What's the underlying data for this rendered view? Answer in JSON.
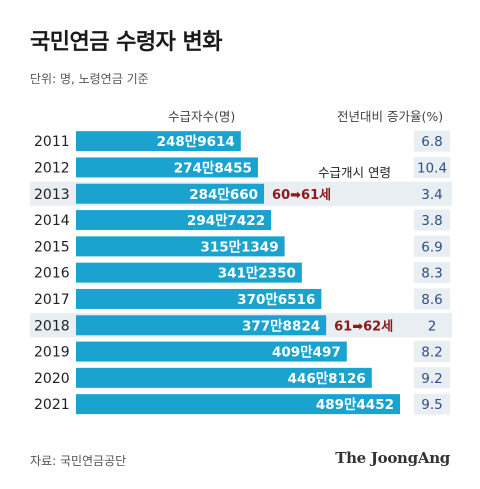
{
  "title": "국민연금 수령자 변화",
  "unit_note": "단위: 명, 노령연금 기준",
  "header_left": "수급자수(명)",
  "header_right": "전년대비 증가율(%)",
  "source": "자료: 국민연금공단",
  "brand": "The JoongAng",
  "colors": {
    "bar": "#1aa3cf",
    "row_shade": "#e9eef2",
    "pct_box": "#e9eef2",
    "pct_text": "#2f4f86",
    "annotation_value": "#8b1a1a"
  },
  "annotations": [
    {
      "row_year": "2013",
      "label": "수급개시 연령",
      "from": "60",
      "arrow": "➡",
      "to": "61세"
    },
    {
      "row_year": "2018",
      "label": "",
      "from": "61",
      "arrow": "➡",
      "to": "62세"
    }
  ],
  "chart_data": {
    "type": "bar",
    "orientation": "horizontal",
    "categories": [
      "2011",
      "2012",
      "2013",
      "2014",
      "2015",
      "2016",
      "2017",
      "2018",
      "2019",
      "2020",
      "2021"
    ],
    "values": [
      2489614,
      2748455,
      2840660,
      2947422,
      3151349,
      3412350,
      3706516,
      3778824,
      4090497,
      4468126,
      4894452
    ],
    "value_labels": [
      "248만9614",
      "274만8455",
      "284만660",
      "294만7422",
      "315만1349",
      "341만2350",
      "370만6516",
      "377만8824",
      "409만497",
      "446만8126",
      "489만4452"
    ],
    "growth_rate_labels": [
      "6.8",
      "10.4",
      "3.4",
      "3.8",
      "6.9",
      "8.3",
      "8.6",
      "2",
      "8.2",
      "9.2",
      "9.5"
    ],
    "growth_rate": [
      6.8,
      10.4,
      3.4,
      3.8,
      6.9,
      8.3,
      8.6,
      2,
      8.2,
      9.2,
      9.5
    ],
    "shaded_rows": [
      "2013",
      "2018"
    ],
    "xlim": [
      0,
      4894452
    ]
  }
}
